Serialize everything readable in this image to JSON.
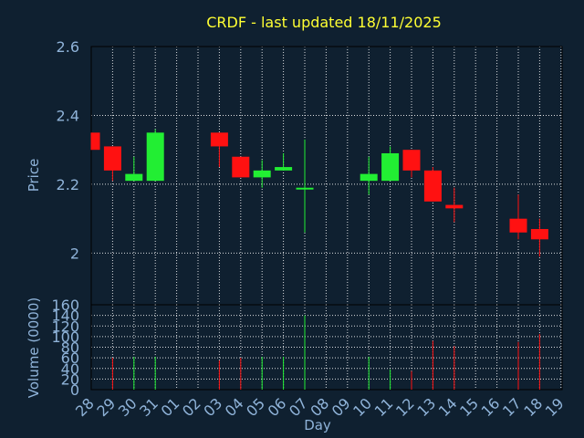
{
  "chart_data": {
    "type": "candlestick",
    "title": "CRDF - last updated 18/11/2025",
    "colors": {
      "background": "#0f2030",
      "title": "#ffff33",
      "axis_text": "#8fb3d9",
      "grid": "#ffffff",
      "up": "#22ee33",
      "down": "#ff1111"
    },
    "x": {
      "label": "Day",
      "ticks": [
        "28",
        "29",
        "30",
        "31",
        "01",
        "02",
        "03",
        "04",
        "05",
        "06",
        "07",
        "08",
        "09",
        "10",
        "11",
        "12",
        "13",
        "14",
        "15",
        "16",
        "17",
        "18",
        "19"
      ]
    },
    "price_panel": {
      "ylabel": "Price",
      "ylim": [
        1.85,
        2.6
      ],
      "yticks": [
        2,
        2.2,
        2.4,
        2.6
      ],
      "ytick_labels": [
        "2",
        "2.2",
        "2.4",
        "2.6"
      ]
    },
    "volume_panel": {
      "ylabel": "Volume (0000)",
      "ylim": [
        0,
        160
      ],
      "yticks": [
        0,
        20,
        40,
        60,
        80,
        100,
        120,
        140,
        160
      ],
      "ytick_labels": [
        "0",
        "20",
        "40",
        "60",
        "80",
        "100",
        "120",
        "140",
        "160"
      ]
    },
    "candles": [
      {
        "day": "28",
        "open": 2.35,
        "high": 2.35,
        "low": 2.3,
        "close": 2.3,
        "volume": 0
      },
      {
        "day": "29",
        "open": 2.31,
        "high": 2.31,
        "low": 2.21,
        "close": 2.24,
        "volume": 60
      },
      {
        "day": "30",
        "open": 2.21,
        "high": 2.28,
        "low": 2.21,
        "close": 2.23,
        "volume": 62
      },
      {
        "day": "31",
        "open": 2.21,
        "high": 2.36,
        "low": 2.21,
        "close": 2.35,
        "volume": 62
      },
      {
        "day": "03",
        "open": 2.35,
        "high": 2.35,
        "low": 2.25,
        "close": 2.31,
        "volume": 55
      },
      {
        "day": "04",
        "open": 2.28,
        "high": 2.28,
        "low": 2.22,
        "close": 2.22,
        "volume": 60
      },
      {
        "day": "05",
        "open": 2.22,
        "high": 2.27,
        "low": 2.19,
        "close": 2.24,
        "volume": 62
      },
      {
        "day": "06",
        "open": 2.24,
        "high": 2.29,
        "low": 2.24,
        "close": 2.25,
        "volume": 62
      },
      {
        "day": "07",
        "open": 2.19,
        "high": 2.33,
        "low": 2.06,
        "close": 2.19,
        "volume": 140
      },
      {
        "day": "10",
        "open": 2.21,
        "high": 2.28,
        "low": 2.17,
        "close": 2.23,
        "volume": 62
      },
      {
        "day": "11",
        "open": 2.21,
        "high": 2.31,
        "low": 2.21,
        "close": 2.29,
        "volume": 38
      },
      {
        "day": "12",
        "open": 2.3,
        "high": 2.3,
        "low": 2.22,
        "close": 2.24,
        "volume": 35
      },
      {
        "day": "13",
        "open": 2.24,
        "high": 2.25,
        "low": 2.15,
        "close": 2.15,
        "volume": 92
      },
      {
        "day": "14",
        "open": 2.14,
        "high": 2.19,
        "low": 2.09,
        "close": 2.13,
        "volume": 82
      },
      {
        "day": "17",
        "open": 2.1,
        "high": 2.17,
        "low": 2.04,
        "close": 2.06,
        "volume": 90
      },
      {
        "day": "18",
        "open": 2.07,
        "high": 2.1,
        "low": 1.99,
        "close": 2.04,
        "volume": 105
      }
    ]
  }
}
